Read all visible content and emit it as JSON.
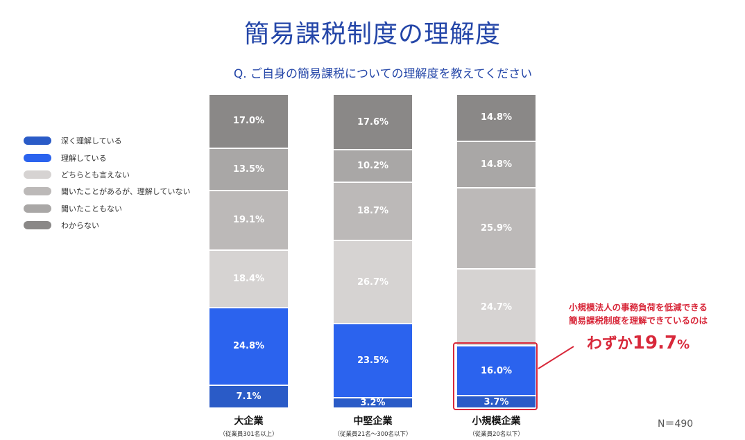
{
  "title": "簡易課税制度の理解度",
  "question": "Q. ご自身の簡易課税についての理解度を教えてください",
  "sample_size": "N＝490",
  "callout": {
    "line1": "小規模法人の事務負荷を低減できる",
    "line2": "簡易課税制度を理解できているのは",
    "prefix": "わずか",
    "number": "19.7",
    "unit": "%",
    "color": "#d8283a"
  },
  "chart_data": {
    "type": "bar",
    "stacked": true,
    "orientation": "vertical",
    "ylim": [
      0,
      100
    ],
    "grid": false,
    "legend_position": "left",
    "categories": [
      "大企業",
      "中堅企業",
      "小規模企業"
    ],
    "category_subtitles": [
      "（従業員301名以上）",
      "（従業員21名～300名以下）",
      "（従業員20名以下）"
    ],
    "series": [
      {
        "name": "深く理解している",
        "color": "#2a5bc7",
        "values": [
          7.1,
          3.2,
          3.7
        ],
        "labels": [
          "7.1%",
          "3.2%",
          "3.7%"
        ]
      },
      {
        "name": "理解している",
        "color": "#2b63ee",
        "values": [
          24.8,
          23.5,
          16.0
        ],
        "labels": [
          "24.8%",
          "23.5%",
          "16.0%"
        ]
      },
      {
        "name": "どちらとも言えない",
        "color": "#d6d3d2",
        "values": [
          18.4,
          26.7,
          24.7
        ],
        "labels": [
          "18.4%",
          "26.7%",
          "24.7%"
        ]
      },
      {
        "name": "聞いたことがあるが、理解していない",
        "color": "#bcb9b8",
        "values": [
          19.1,
          18.7,
          25.9
        ],
        "labels": [
          "19.1%",
          "18.7%",
          "25.9%"
        ]
      },
      {
        "name": "聞いたこともない",
        "color": "#a9a7a6",
        "values": [
          13.5,
          10.2,
          14.8
        ],
        "labels": [
          "13.5%",
          "10.2%",
          "14.8%"
        ]
      },
      {
        "name": "わからない",
        "color": "#8a8887",
        "values": [
          17.0,
          17.6,
          14.8
        ],
        "labels": [
          "17.0%",
          "17.6%",
          "14.8%"
        ]
      }
    ]
  }
}
